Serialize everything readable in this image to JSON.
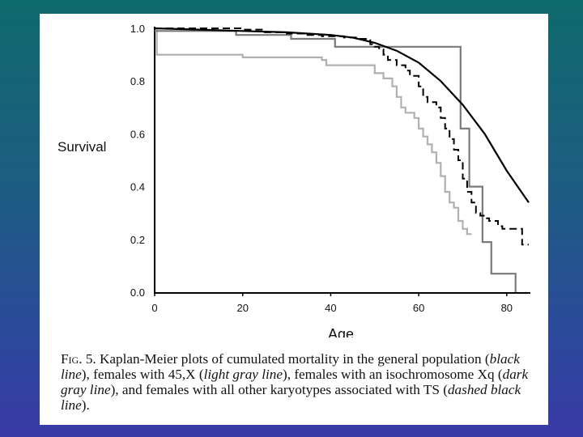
{
  "chart_data": {
    "type": "line",
    "ylabel": "Survival",
    "xlabel": "Age",
    "xlim": [
      0,
      85
    ],
    "ylim": [
      0,
      1.0
    ],
    "x_ticks": [
      "0",
      "20",
      "40",
      "60",
      "80"
    ],
    "y_ticks": [
      "0.0",
      "0.2",
      "0.4",
      "0.6",
      "0.8",
      "1.0"
    ],
    "series": [
      {
        "name": "general population",
        "style": "black line",
        "color": "#000000",
        "dash": false,
        "step": false,
        "points": [
          [
            0,
            1.0
          ],
          [
            10,
            0.995
          ],
          [
            20,
            0.99
          ],
          [
            30,
            0.985
          ],
          [
            40,
            0.975
          ],
          [
            45,
            0.965
          ],
          [
            50,
            0.945
          ],
          [
            55,
            0.915
          ],
          [
            60,
            0.87
          ],
          [
            65,
            0.8
          ],
          [
            70,
            0.71
          ],
          [
            75,
            0.6
          ],
          [
            80,
            0.46
          ],
          [
            85,
            0.34
          ]
        ]
      },
      {
        "name": "45,X",
        "style": "light gray line",
        "color": "#b0b0b0",
        "dash": false,
        "step": true,
        "points": [
          [
            0,
            1.0
          ],
          [
            0.5,
            0.9
          ],
          [
            10,
            0.9
          ],
          [
            20,
            0.89
          ],
          [
            38,
            0.88
          ],
          [
            39,
            0.86
          ],
          [
            50,
            0.83
          ],
          [
            52,
            0.81
          ],
          [
            54,
            0.78
          ],
          [
            55,
            0.74
          ],
          [
            56,
            0.7
          ],
          [
            57,
            0.68
          ],
          [
            59,
            0.66
          ],
          [
            60,
            0.62
          ],
          [
            61,
            0.59
          ],
          [
            62,
            0.56
          ],
          [
            63,
            0.53
          ],
          [
            64,
            0.49
          ],
          [
            65,
            0.44
          ],
          [
            66,
            0.38
          ],
          [
            67,
            0.34
          ],
          [
            68,
            0.32
          ],
          [
            69,
            0.27
          ],
          [
            70,
            0.24
          ],
          [
            71,
            0.22
          ],
          [
            72,
            0.22
          ]
        ]
      },
      {
        "name": "isochromosome Xq",
        "style": "dark gray line",
        "color": "#7a7a7a",
        "dash": false,
        "step": true,
        "points": [
          [
            0,
            0.99
          ],
          [
            18,
            0.99
          ],
          [
            18.5,
            0.975
          ],
          [
            30,
            0.975
          ],
          [
            31,
            0.96
          ],
          [
            40,
            0.96
          ],
          [
            41,
            0.93
          ],
          [
            69,
            0.93
          ],
          [
            69.5,
            0.62
          ],
          [
            71,
            0.62
          ],
          [
            71.5,
            0.4
          ],
          [
            74,
            0.4
          ],
          [
            74.5,
            0.19
          ],
          [
            76,
            0.19
          ],
          [
            76.5,
            0.07
          ],
          [
            82,
            0.07
          ],
          [
            82,
            0.0
          ]
        ]
      },
      {
        "name": "other karyotypes associated with TS",
        "style": "dashed black line",
        "color": "#000000",
        "dash": true,
        "step": true,
        "points": [
          [
            0,
            1.0
          ],
          [
            20,
            0.995
          ],
          [
            25,
            0.985
          ],
          [
            30,
            0.98
          ],
          [
            34,
            0.975
          ],
          [
            38,
            0.97
          ],
          [
            43,
            0.965
          ],
          [
            46,
            0.96
          ],
          [
            48,
            0.955
          ],
          [
            49,
            0.94
          ],
          [
            50,
            0.93
          ],
          [
            51,
            0.92
          ],
          [
            52,
            0.9
          ],
          [
            53,
            0.88
          ],
          [
            55,
            0.86
          ],
          [
            57,
            0.84
          ],
          [
            58,
            0.82
          ],
          [
            60,
            0.78
          ],
          [
            61,
            0.74
          ],
          [
            62,
            0.72
          ],
          [
            64,
            0.7
          ],
          [
            65,
            0.66
          ],
          [
            66,
            0.62
          ],
          [
            67,
            0.58
          ],
          [
            68,
            0.54
          ],
          [
            69,
            0.5
          ],
          [
            70,
            0.43
          ],
          [
            71,
            0.38
          ],
          [
            72,
            0.34
          ],
          [
            73,
            0.3
          ],
          [
            74,
            0.29
          ],
          [
            75,
            0.28
          ],
          [
            76,
            0.27
          ],
          [
            78,
            0.25
          ],
          [
            79,
            0.24
          ],
          [
            83,
            0.24
          ],
          [
            83.5,
            0.18
          ],
          [
            85,
            0.18
          ]
        ]
      }
    ]
  },
  "caption": {
    "fig_label": "Fig. 5.",
    "text_1": " Kaplan-Meier plots of cumulated mortality in the general population (",
    "s1": "black line",
    "text_2": "), females with 45,X (",
    "s2": "light gray line",
    "text_3": "), females with an isochromosome Xq (",
    "s3": "dark gray line",
    "text_4": "), and females with all other karyotypes associated with TS (",
    "s4": "dashed black line",
    "text_5": ")."
  }
}
